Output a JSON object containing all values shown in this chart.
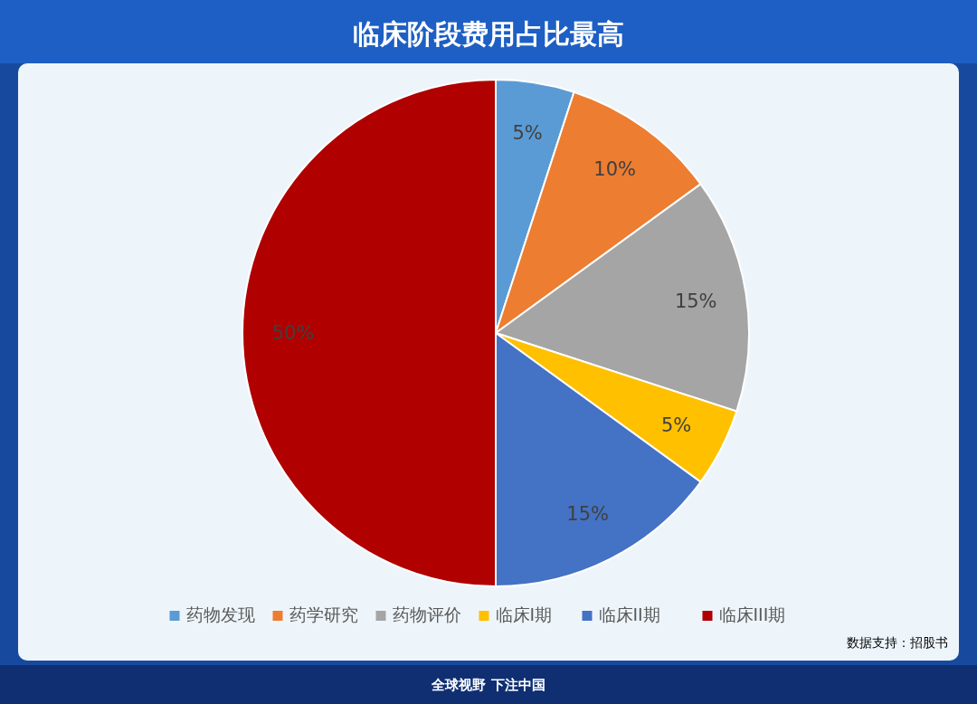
{
  "chart_data": {
    "type": "pie",
    "title": "临床阶段费用占比最高",
    "categories": [
      "药物发现",
      "药学研究",
      "药物评价",
      "临床I期",
      "临床II期",
      "临床III期"
    ],
    "values": [
      5,
      10,
      15,
      5,
      15,
      50
    ],
    "colors": [
      "#5b9bd5",
      "#ed7d31",
      "#a5a5a5",
      "#ffc000",
      "#4472c4",
      "#b00000"
    ],
    "value_labels": [
      "5%",
      "10%",
      "15%",
      "5%",
      "15%",
      "50%"
    ],
    "legend": "bottom",
    "annotations": [
      "数据支持：招股书",
      "全球视野 下注中国"
    ]
  }
}
